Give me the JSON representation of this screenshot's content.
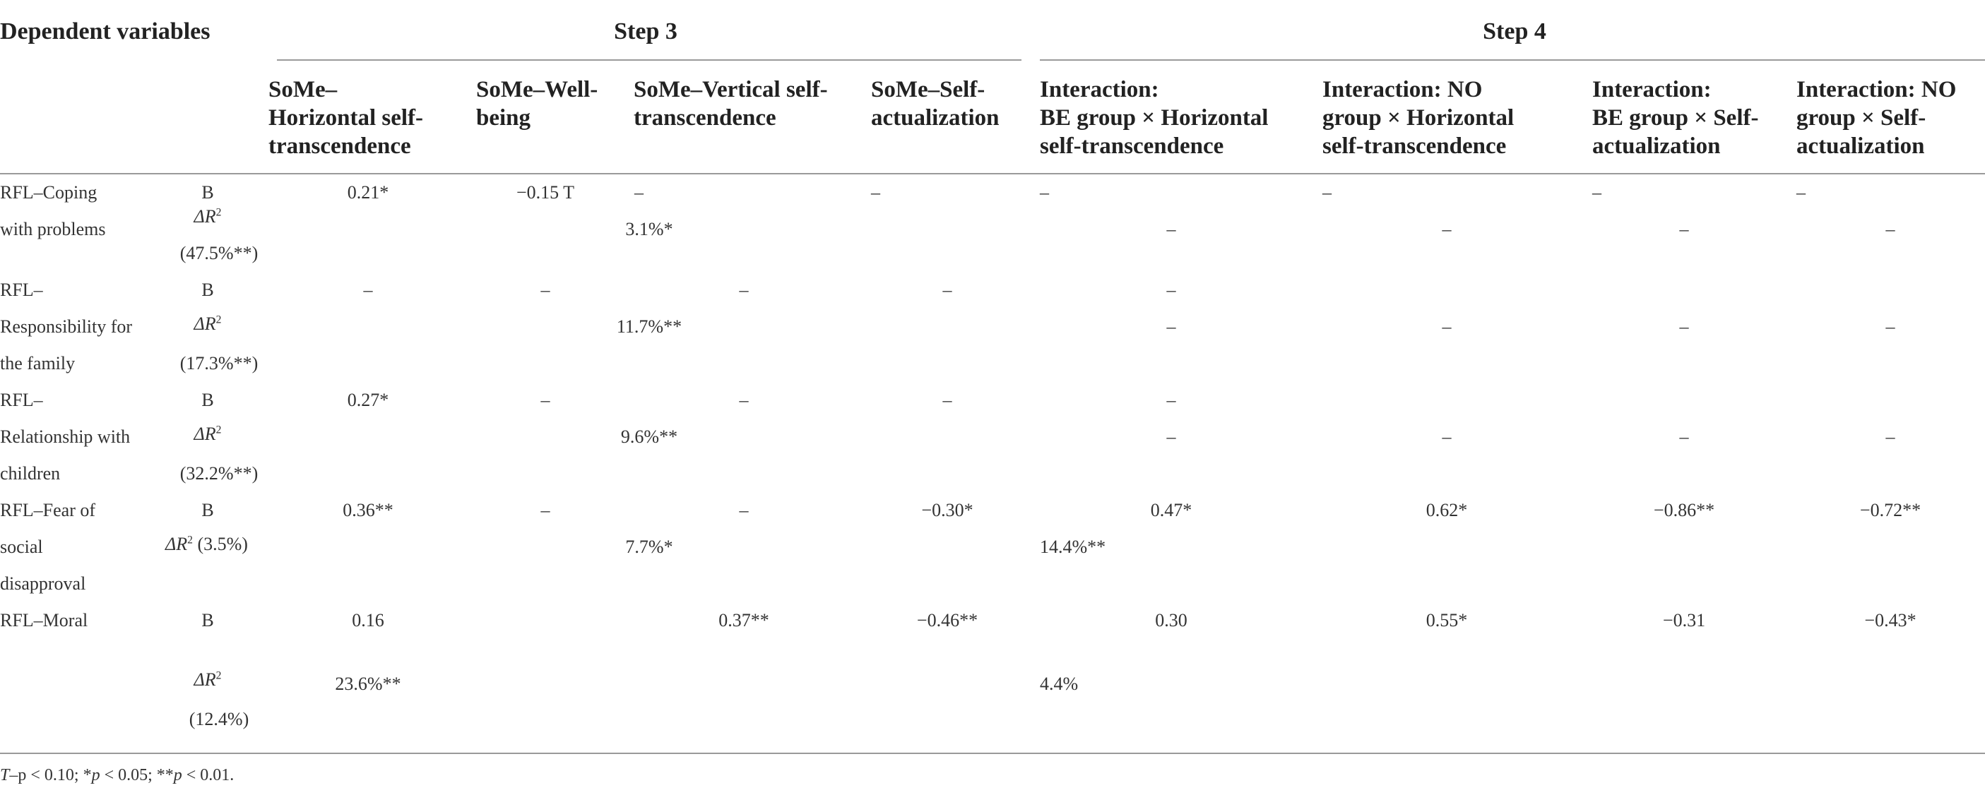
{
  "title_left": "Dependent variables",
  "step3": "Step 3",
  "step4": "Step 4",
  "columns": [
    [
      "SoMe–",
      "Horizontal self-",
      "transcendence"
    ],
    [
      "SoMe–Well-",
      "being"
    ],
    [
      "SoMe–Vertical self-",
      "transcendence"
    ],
    [
      "SoMe–Self-",
      "actualization"
    ],
    [
      "Interaction:",
      "BE group × Horizontal",
      "self-transcendence"
    ],
    [
      "Interaction: NO",
      "group × Horizontal",
      "self-transcendence"
    ],
    [
      "Interaction:",
      "BE group × Self-",
      "actualization"
    ],
    [
      "Interaction: NO",
      "group × Self-",
      "actualization"
    ]
  ],
  "rows": {
    "coping": {
      "label1": "RFL–Coping",
      "label2": "with problems",
      "b": "B",
      "dr": "ΔR",
      "dr_sup": "2",
      "dr_val": "(47.5%**)",
      "b_vals": [
        "0.21*",
        "−0.15 T",
        "–",
        "–",
        "–",
        "–",
        "–",
        "–"
      ],
      "dr_vals": [
        "3.1%*",
        "–",
        "–",
        "–",
        "–"
      ]
    },
    "family": {
      "label1": "RFL–",
      "label2": "Responsibility for",
      "label3": "the family",
      "b": "B",
      "dr": "ΔR",
      "dr_sup": "2",
      "dr_val": "(17.3%**)",
      "b_vals": [
        "–",
        "–",
        "–",
        "–",
        "–"
      ],
      "dr_vals": [
        "11.7%**",
        "–",
        "–",
        "–",
        "–"
      ]
    },
    "children": {
      "label1": "RFL–",
      "label2": "Relationship with",
      "label3": "children",
      "b": "B",
      "dr": "ΔR",
      "dr_sup": "2",
      "dr_val": "(32.2%**)",
      "b_vals": [
        "0.27*",
        "–",
        "–",
        "–",
        "–"
      ],
      "dr_vals": [
        "9.6%**",
        "–",
        "–",
        "–",
        "–"
      ]
    },
    "fear": {
      "label1": "RFL–Fear of",
      "label2": "social",
      "label3": "disapproval",
      "b": "B",
      "dr": "ΔR",
      "dr_sup": "2",
      "dr_val": " (3.5%)",
      "b_vals": [
        "0.36**",
        "–",
        "–",
        "−0.30*",
        "0.47*",
        "0.62*",
        "−0.86**",
        "−0.72**"
      ],
      "dr_vals": [
        "7.7%*",
        "14.4%**"
      ]
    },
    "moral": {
      "label1": "RFL–Moral",
      "b": "B",
      "dr": "ΔR",
      "dr_sup": "2",
      "dr_val": "(12.4%)",
      "b_vals": [
        "0.16",
        "0.37**",
        "−0.46**",
        "0.30",
        "0.55*",
        "−0.31",
        "−0.43*"
      ],
      "dr_vals": [
        "23.6%**",
        "4.4%"
      ]
    }
  },
  "footnote": {
    "t": "T",
    "t_rest": "–p < 0.10; *",
    "p1": "p",
    "rest1": " < 0.05; **",
    "p2": "p",
    "rest2": " < 0.01."
  }
}
